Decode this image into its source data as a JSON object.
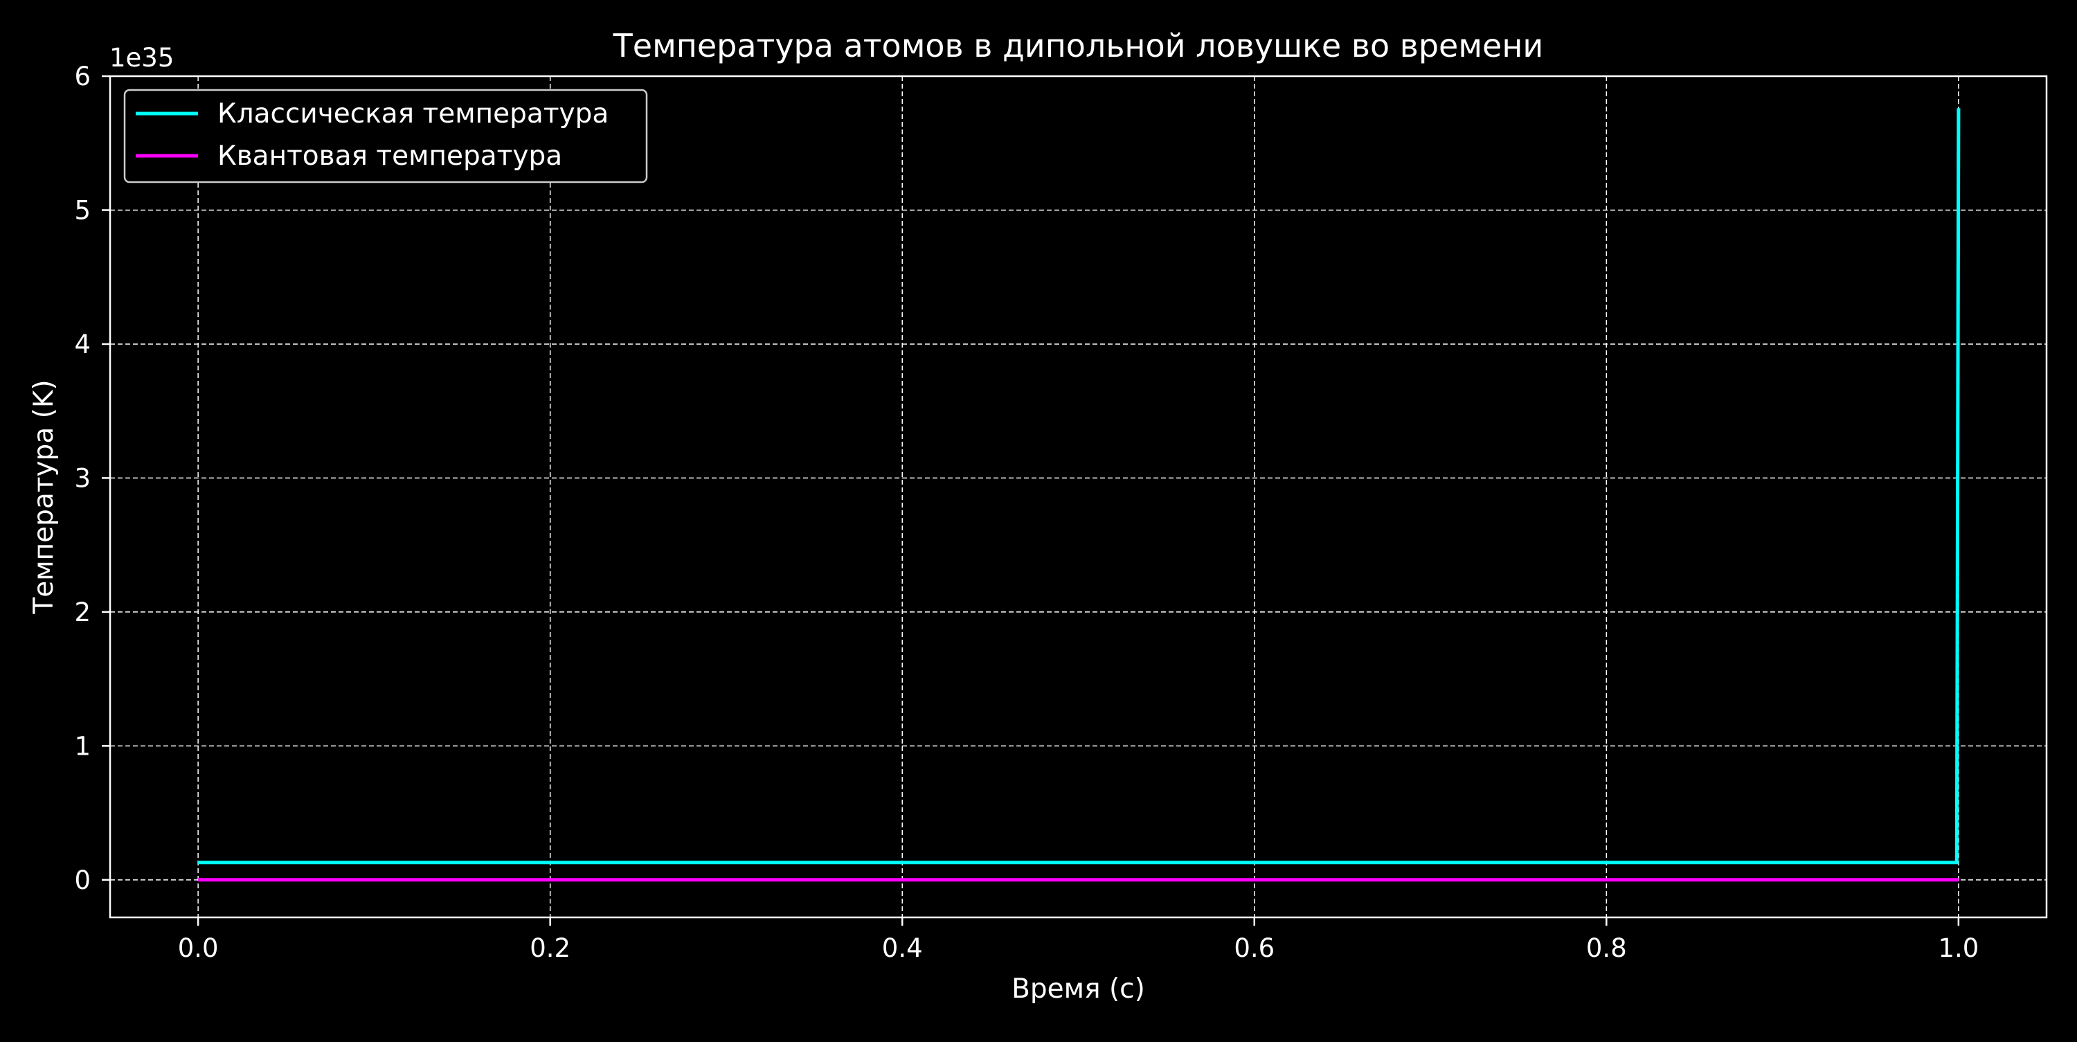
{
  "chart_data": {
    "type": "line",
    "title": "Температура атомов в дипольной ловушке во времени",
    "xlabel": "Время (с)",
    "ylabel": "Температура (K)",
    "xlim": [
      -0.05,
      1.05
    ],
    "ylim": [
      -0.28,
      6.0
    ],
    "x_ticks": [
      0.0,
      0.2,
      0.4,
      0.6,
      0.8,
      1.0
    ],
    "x_tick_labels": [
      "0.0",
      "0.2",
      "0.4",
      "0.6",
      "0.8",
      "1.0"
    ],
    "y_ticks": [
      0,
      1,
      2,
      3,
      4,
      5,
      6
    ],
    "y_tick_labels": [
      "0",
      "1",
      "2",
      "3",
      "4",
      "5",
      "6"
    ],
    "y_offset_label": "1e35",
    "grid": true,
    "legend_position": "upper-left",
    "series": [
      {
        "name": "Классическая температура",
        "color": "#00ffff",
        "x": [
          0.0,
          0.999,
          1.0
        ],
        "y": [
          0.13,
          0.13,
          5.76
        ]
      },
      {
        "name": "Квантовая температура",
        "color": "#ff00ff",
        "x": [
          0.0,
          1.0
        ],
        "y": [
          0.0,
          0.0
        ]
      }
    ]
  }
}
